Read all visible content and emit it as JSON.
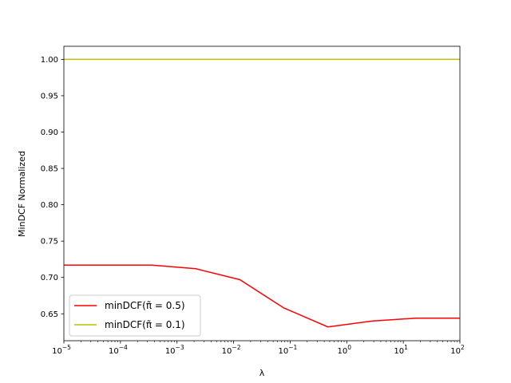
{
  "chart_data": {
    "type": "line",
    "xlabel": "λ",
    "ylabel": "MinDCF Normalized",
    "xscale": "log",
    "xlim": [
      1e-05,
      100
    ],
    "ylim": [
      0.613,
      1.018
    ],
    "grid": false,
    "legend_position": "lower-left",
    "x_ticks": [
      {
        "value": 1e-05,
        "base": "10",
        "exp": "−5"
      },
      {
        "value": 0.0001,
        "base": "10",
        "exp": "−4"
      },
      {
        "value": 0.001,
        "base": "10",
        "exp": "−3"
      },
      {
        "value": 0.01,
        "base": "10",
        "exp": "−2"
      },
      {
        "value": 0.1,
        "base": "10",
        "exp": "−1"
      },
      {
        "value": 1,
        "base": "10",
        "exp": "0"
      },
      {
        "value": 10,
        "base": "10",
        "exp": "1"
      },
      {
        "value": 100,
        "base": "10",
        "exp": "2"
      }
    ],
    "y_ticks": [
      {
        "value": 0.65,
        "label": "0.65"
      },
      {
        "value": 0.7,
        "label": "0.70"
      },
      {
        "value": 0.75,
        "label": "0.75"
      },
      {
        "value": 0.8,
        "label": "0.80"
      },
      {
        "value": 0.85,
        "label": "0.85"
      },
      {
        "value": 0.9,
        "label": "0.90"
      },
      {
        "value": 0.95,
        "label": "0.95"
      },
      {
        "value": 1.0,
        "label": "1.00"
      }
    ],
    "series": [
      {
        "name": "minDCF(π̃ = 0.5)",
        "color": "#ff0000",
        "x": [
          1e-05,
          5.99e-05,
          0.000359,
          0.00215,
          0.0129,
          0.0774,
          0.464,
          2.78,
          16.7,
          100
        ],
        "values": [
          0.717,
          0.717,
          0.717,
          0.712,
          0.697,
          0.658,
          0.632,
          0.64,
          0.644,
          0.644
        ]
      },
      {
        "name": "minDCF(π̃ = 0.1)",
        "color": "#bfbf00",
        "x": [
          1e-05,
          5.99e-05,
          0.000359,
          0.00215,
          0.0129,
          0.0774,
          0.464,
          2.78,
          16.7,
          100
        ],
        "values": [
          1.0,
          1.0,
          1.0,
          1.0,
          1.0,
          1.0,
          1.0,
          1.0,
          1.0,
          1.0
        ]
      }
    ]
  }
}
